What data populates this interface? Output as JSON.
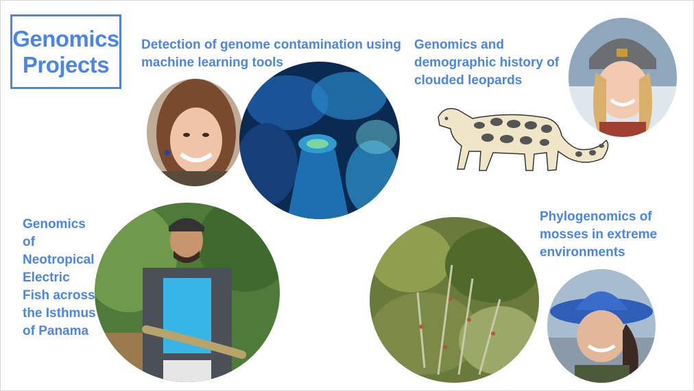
{
  "slide": {
    "title": "Genomics Projects",
    "projects": [
      {
        "heading": "Detection of genome contamination using machine learning tools"
      },
      {
        "heading": "Genomics and demographic history of clouded leopards"
      },
      {
        "heading": "Genomics of Neotropical Electric Fish across the Isthmus of Panama"
      },
      {
        "heading": "Phylogenomics of mosses in extreme environments"
      }
    ]
  },
  "colors": {
    "accent": "#4a86e8"
  }
}
